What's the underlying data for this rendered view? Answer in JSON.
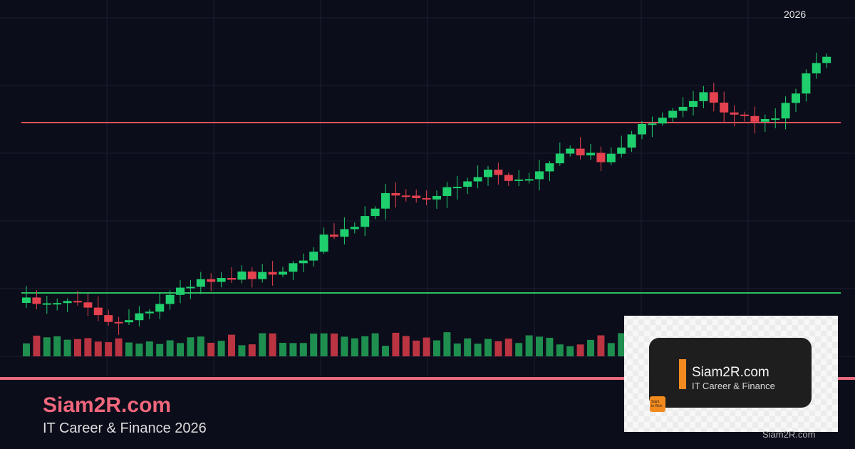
{
  "top_label": "2026",
  "brand": {
    "title": "Siam2R.com",
    "subtitle": "IT Career & Finance 2026"
  },
  "badge": {
    "title": "Siam2R.com",
    "subtitle": "IT Career & Finance",
    "icon_text": [
      "Siam",
      "to Rich"
    ]
  },
  "footer": "Siam2R.com"
}
